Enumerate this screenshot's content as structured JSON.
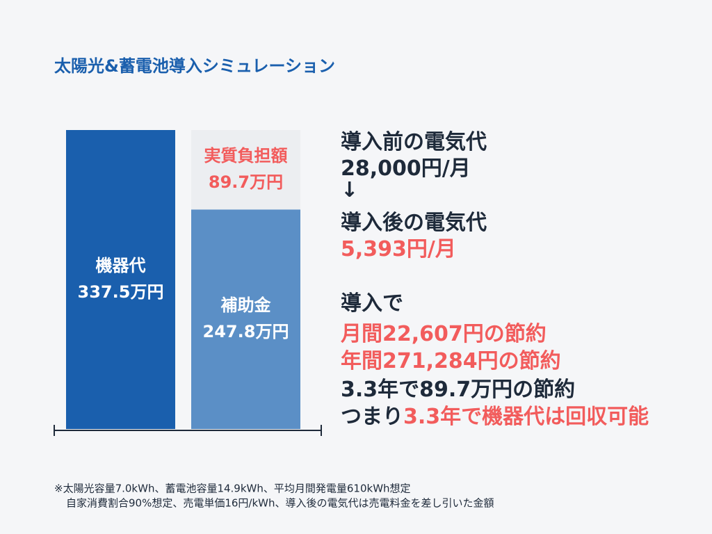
{
  "chart_data": {
    "type": "stacked-bar",
    "title": "太陽光&蓄電池導入シミュレーション",
    "categories": [
      null,
      null
    ],
    "series": [
      {
        "name": "機器代",
        "color": "#1a5fad",
        "label_color": "#ffffff",
        "values": [
          337.5,
          null
        ],
        "value_labels": [
          "337.5万円",
          null
        ]
      },
      {
        "name": "補助金",
        "color": "#5b8fc6",
        "label_color": "#ffffff",
        "values": [
          null,
          247.8
        ],
        "value_labels": [
          null,
          "247.8万円"
        ]
      },
      {
        "name": "実質負担額",
        "color": "#eceef1",
        "label_color": "#f25c5c",
        "values": [
          null,
          89.7
        ],
        "value_labels": [
          null,
          "89.7万円"
        ]
      }
    ]
  },
  "summary": {
    "emphasis_color": "#f25c5c",
    "lines": [
      [
        {
          "text": "導入前の電気代"
        }
      ],
      [
        {
          "text": "28,000円/月"
        }
      ],
      [
        {
          "text": "↓"
        }
      ],
      [
        {
          "text": "導入後の電気代"
        }
      ],
      [
        {
          "text": "5,393円/月",
          "emphasis": true
        }
      ],
      [
        {
          "text": "導入で"
        }
      ],
      [
        {
          "text": "月間22,607円の節約",
          "emphasis": true
        }
      ],
      [
        {
          "text": "年間271,284円の節約",
          "emphasis": true
        }
      ],
      [
        {
          "text": "3.3年で89.7万円の節約"
        }
      ],
      [
        {
          "text": "つまり"
        },
        {
          "text": "3.3年で機器代は回収可能",
          "emphasis": true
        }
      ]
    ]
  },
  "footnote": [
    "※太陽光容量7.0kWh、蓄電池容量14.9kWh、平均月間発電量610kWh想定",
    "自家消費割合90%想定、売電単価16円/kWh、導入後の電気代は売電料金を差し引いた金額"
  ]
}
